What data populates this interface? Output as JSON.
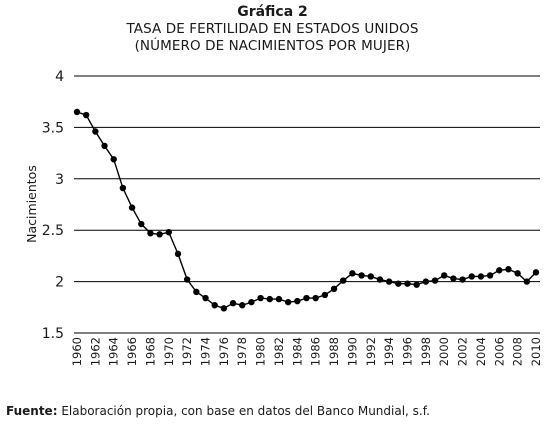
{
  "figure": {
    "label": "Gráfica 2",
    "title_line1": "TASA DE FERTILIDAD EN ESTADOS UNIDOS",
    "title_line2": "(NÚMERO DE NACIMIENTOS POR MUJER)",
    "source_label": "Fuente:",
    "source_text": " Elaboración propia, con base en datos del Banco Mundial, s.f."
  },
  "colors": {
    "line": "#000000",
    "grid": "#000000",
    "text": "#1a1a1a"
  },
  "chart_data": {
    "type": "line",
    "title": "TASA DE FERTILIDAD EN ESTADOS UNIDOS (NÚMERO DE NACIMIENTOS POR MUJER)",
    "xlabel": "",
    "ylabel": "Nacimientos",
    "ylim": [
      1.5,
      4
    ],
    "yticks": [
      1.5,
      2,
      2.5,
      3,
      3.5,
      4
    ],
    "ytick_labels": [
      "1.5",
      "2",
      "2.5",
      "3",
      "3.5",
      "4"
    ],
    "xticks": [
      1960,
      1962,
      1964,
      1966,
      1968,
      1970,
      1972,
      1974,
      1976,
      1978,
      1980,
      1982,
      1984,
      1986,
      1988,
      1990,
      1992,
      1994,
      1996,
      1998,
      2000,
      2002,
      2004,
      2006,
      2008,
      2010
    ],
    "grid": "horizontal",
    "legend": "none",
    "x": [
      1960,
      1961,
      1962,
      1963,
      1964,
      1965,
      1966,
      1967,
      1968,
      1969,
      1970,
      1971,
      1972,
      1973,
      1974,
      1975,
      1976,
      1977,
      1978,
      1979,
      1980,
      1981,
      1982,
      1983,
      1984,
      1985,
      1986,
      1987,
      1988,
      1989,
      1990,
      1991,
      1992,
      1993,
      1994,
      1995,
      1996,
      1997,
      1998,
      1999,
      2000,
      2001,
      2002,
      2003,
      2004,
      2005,
      2006,
      2007,
      2008,
      2009,
      2010
    ],
    "y": [
      3.65,
      3.62,
      3.46,
      3.32,
      3.19,
      2.91,
      2.72,
      2.56,
      2.47,
      2.46,
      2.48,
      2.27,
      2.02,
      1.9,
      1.84,
      1.77,
      1.74,
      1.79,
      1.77,
      1.8,
      1.84,
      1.83,
      1.83,
      1.8,
      1.81,
      1.84,
      1.84,
      1.87,
      1.93,
      2.01,
      2.08,
      2.06,
      2.05,
      2.02,
      2.0,
      1.98,
      1.98,
      1.97,
      2.0,
      2.01,
      2.06,
      2.03,
      2.02,
      2.05,
      2.05,
      2.06,
      2.11,
      2.12,
      2.08,
      2.0,
      2.09
    ]
  }
}
